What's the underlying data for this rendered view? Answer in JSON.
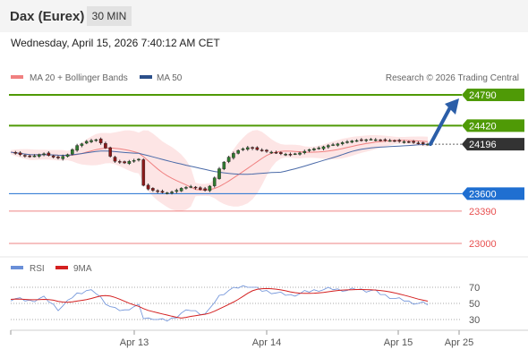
{
  "header": {
    "title": "Dax (Eurex)",
    "timeframe": "30 MIN",
    "datetime": "Wednesday, April 15, 2026 7:40:12 AM CET"
  },
  "legend": {
    "bollinger": "MA 20 + Bollinger Bands",
    "ma50": "MA 50",
    "credit": "Research © 2026 Trading Central",
    "rsi": "RSI",
    "rsi_ma": "9MA"
  },
  "colors": {
    "resistance": "#4f9a06",
    "pivot": "#1f6fd1",
    "support": "#e85050",
    "price_tag": "#333333",
    "arrow": "#2b5ea8",
    "bollinger_fill": "#fbd3d3",
    "ma20": "#f08080",
    "ma50": "#4a6aa8",
    "rsi": "#6a8fd8",
    "rsi_ma": "#d42020"
  },
  "chart_data": {
    "type": "candlestick",
    "x_tick_labels": [
      "Apr 13",
      "Apr 14",
      "Apr 15",
      "Apr 25"
    ],
    "ylim": [
      22950,
      24850
    ],
    "current_price": 24196,
    "levels": [
      {
        "label": "24790",
        "value": 24790,
        "kind": "resistance"
      },
      {
        "label": "24420",
        "value": 24420,
        "kind": "resistance"
      },
      {
        "label": "23600",
        "value": 23600,
        "kind": "pivot"
      },
      {
        "label": "23390",
        "value": 23390,
        "kind": "support"
      },
      {
        "label": "23000",
        "value": 23000,
        "kind": "support"
      }
    ],
    "price_label": "24196",
    "target": 24790,
    "closes": [
      24100,
      24085,
      24070,
      24055,
      24045,
      24055,
      24070,
      24080,
      24060,
      24040,
      24030,
      24050,
      24070,
      24130,
      24180,
      24200,
      24230,
      24240,
      24250,
      24210,
      24150,
      24050,
      23990,
      23980,
      23970,
      23990,
      24000,
      24015,
      23700,
      23655,
      23640,
      23625,
      23615,
      23610,
      23620,
      23640,
      23665,
      23675,
      23685,
      23670,
      23650,
      23640,
      23690,
      23790,
      23900,
      23980,
      24040,
      24085,
      24120,
      24140,
      24155,
      24145,
      24130,
      24120,
      24110,
      24100,
      24090,
      24080,
      24075,
      24070,
      24080,
      24090,
      24110,
      24130,
      24140,
      24150,
      24165,
      24180,
      24190,
      24200,
      24215,
      24225,
      24235,
      24240,
      24245,
      24250,
      24255,
      24250,
      24245,
      24245,
      24240,
      24235,
      24230,
      24225,
      24220,
      24215,
      24210,
      24200,
      24196
    ],
    "rsi": {
      "ylim": [
        20,
        80
      ],
      "ticks": [
        70,
        50,
        30
      ],
      "values": [
        55,
        56,
        55,
        54,
        53,
        54,
        56,
        57,
        53,
        48,
        43,
        47,
        52,
        58,
        62,
        64,
        66,
        65,
        63,
        57,
        51,
        46,
        43,
        42,
        41,
        44,
        46,
        47,
        32,
        31,
        32,
        30,
        29,
        29,
        31,
        34,
        38,
        40,
        42,
        40,
        38,
        37,
        42,
        52,
        59,
        63,
        66,
        68,
        70,
        71,
        72,
        70,
        68,
        66,
        65,
        64,
        63,
        62,
        61,
        60,
        61,
        62,
        64,
        65,
        66,
        67,
        67,
        68,
        68,
        67,
        67,
        66,
        67,
        68,
        67,
        66,
        66,
        65,
        62,
        60,
        58,
        56,
        55,
        54,
        52,
        51,
        50,
        50,
        49
      ]
    }
  }
}
